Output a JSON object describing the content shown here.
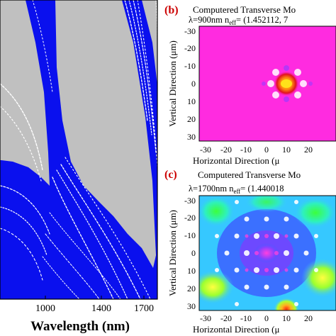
{
  "panel_a": {
    "x_axis_label": "Wavelength (nm)",
    "x_ticks": [
      "1000",
      "1400",
      "1700"
    ]
  },
  "panel_b": {
    "panel_label": "(b)",
    "title": "Computered Transverse Mo",
    "wavelength_line": "λ=900nm  n",
    "neff_sub": "eff",
    "neff_value": "= (1.452112, 7",
    "y_label": "Vertical Direction (μm)",
    "x_label": "Horizontal Direction (μ",
    "y_ticks": [
      "-30",
      "-20",
      "-10",
      "0",
      "10",
      "20",
      "30"
    ],
    "x_ticks": [
      "-30",
      "-20",
      "-10",
      "0",
      "10",
      "20"
    ]
  },
  "panel_c": {
    "panel_label": "(c)",
    "title": "Computered Transverse Mo",
    "wavelength_line": "λ=1700nm  n",
    "neff_sub": "eff",
    "neff_value": "= (1.440018",
    "y_label": "Vertical Direction (μm)",
    "x_label": "Horizontal Direction (μ",
    "y_ticks": [
      "-30",
      "-20",
      "-10",
      "0",
      "10",
      "20",
      "30"
    ],
    "x_ticks": [
      "-30",
      "-20",
      "-10",
      "0",
      "10",
      "20"
    ]
  },
  "colors": {
    "band_blue": "#0a10ee",
    "gap_gray": "#c0c0c0",
    "field_magenta": "#ff2fd6",
    "mode_core": "#ffe21a",
    "label_red": "#cc0000"
  }
}
